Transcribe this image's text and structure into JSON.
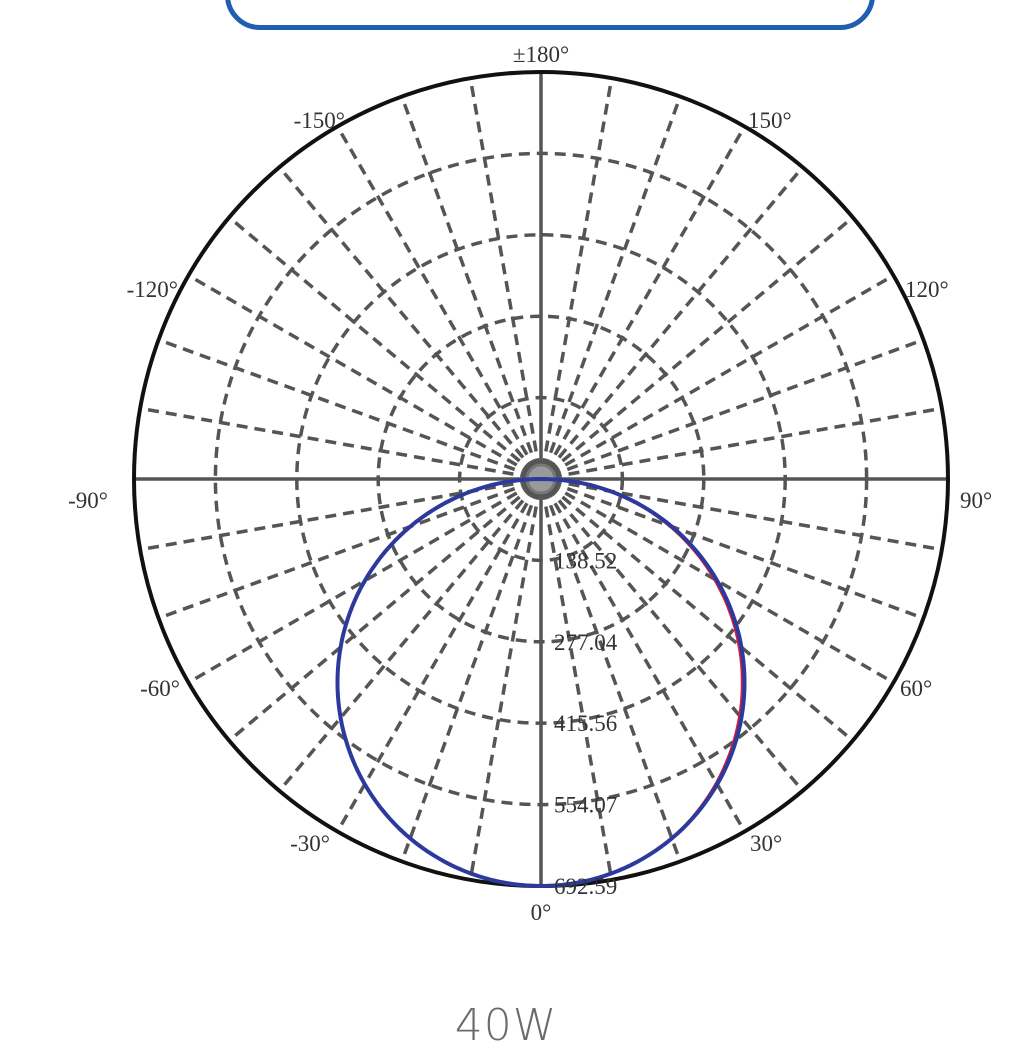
{
  "caption": "40W",
  "colors": {
    "frame": "#1f5fb0",
    "grid": "#555555",
    "outer": "#111111",
    "series_a": "#2b3a9c",
    "series_b": "#d81b3c"
  },
  "chart_data": {
    "type": "polar",
    "title": "",
    "angle_labels": [
      {
        "deg": 180,
        "text": "±180°"
      },
      {
        "deg": 150,
        "text": "150°"
      },
      {
        "deg": -150,
        "text": "-150°"
      },
      {
        "deg": 120,
        "text": "120°"
      },
      {
        "deg": -120,
        "text": "-120°"
      },
      {
        "deg": 90,
        "text": "90°"
      },
      {
        "deg": -90,
        "text": "-90°"
      },
      {
        "deg": 60,
        "text": "60°"
      },
      {
        "deg": -60,
        "text": "-60°"
      },
      {
        "deg": 30,
        "text": "30°"
      },
      {
        "deg": -30,
        "text": "-30°"
      },
      {
        "deg": 0,
        "text": "0°"
      }
    ],
    "radial_ticks": [
      "138.52",
      "277.04",
      "415.56",
      "554.07",
      "692.59"
    ],
    "r_max": 692.59,
    "grid": true,
    "series": [
      {
        "color": "#2b3a9c",
        "max": 692.59,
        "falloff": 0.0
      },
      {
        "color": "#d81b3c",
        "max": 692.59,
        "falloff": 0.02
      }
    ]
  }
}
